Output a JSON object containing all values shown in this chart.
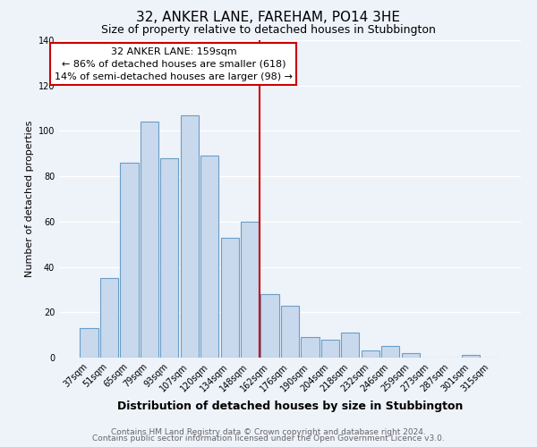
{
  "title": "32, ANKER LANE, FAREHAM, PO14 3HE",
  "subtitle": "Size of property relative to detached houses in Stubbington",
  "xlabel": "Distribution of detached houses by size in Stubbington",
  "ylabel": "Number of detached properties",
  "bar_labels": [
    "37sqm",
    "51sqm",
    "65sqm",
    "79sqm",
    "93sqm",
    "107sqm",
    "120sqm",
    "134sqm",
    "148sqm",
    "162sqm",
    "176sqm",
    "190sqm",
    "204sqm",
    "218sqm",
    "232sqm",
    "246sqm",
    "259sqm",
    "273sqm",
    "287sqm",
    "301sqm",
    "315sqm"
  ],
  "bar_values": [
    13,
    35,
    86,
    104,
    88,
    107,
    89,
    53,
    60,
    28,
    23,
    9,
    8,
    11,
    3,
    5,
    2,
    0,
    0,
    1,
    0
  ],
  "bar_color": "#c9d9ed",
  "bar_edge_color": "#6a9ec7",
  "vline_idx": 9,
  "vline_color": "#cc0000",
  "annotation_title": "32 ANKER LANE: 159sqm",
  "annotation_line1": "← 86% of detached houses are smaller (618)",
  "annotation_line2": "14% of semi-detached houses are larger (98) →",
  "annotation_box_edge": "#cc0000",
  "ylim": [
    0,
    140
  ],
  "yticks": [
    0,
    20,
    40,
    60,
    80,
    100,
    120,
    140
  ],
  "footer_line1": "Contains HM Land Registry data © Crown copyright and database right 2024.",
  "footer_line2": "Contains public sector information licensed under the Open Government Licence v3.0.",
  "bg_color": "#eef2f9",
  "grid_color": "#ffffff",
  "title_fontsize": 11,
  "subtitle_fontsize": 9,
  "xlabel_fontsize": 9,
  "ylabel_fontsize": 8,
  "tick_fontsize": 7,
  "annotation_fontsize": 8,
  "footer_fontsize": 6.5
}
